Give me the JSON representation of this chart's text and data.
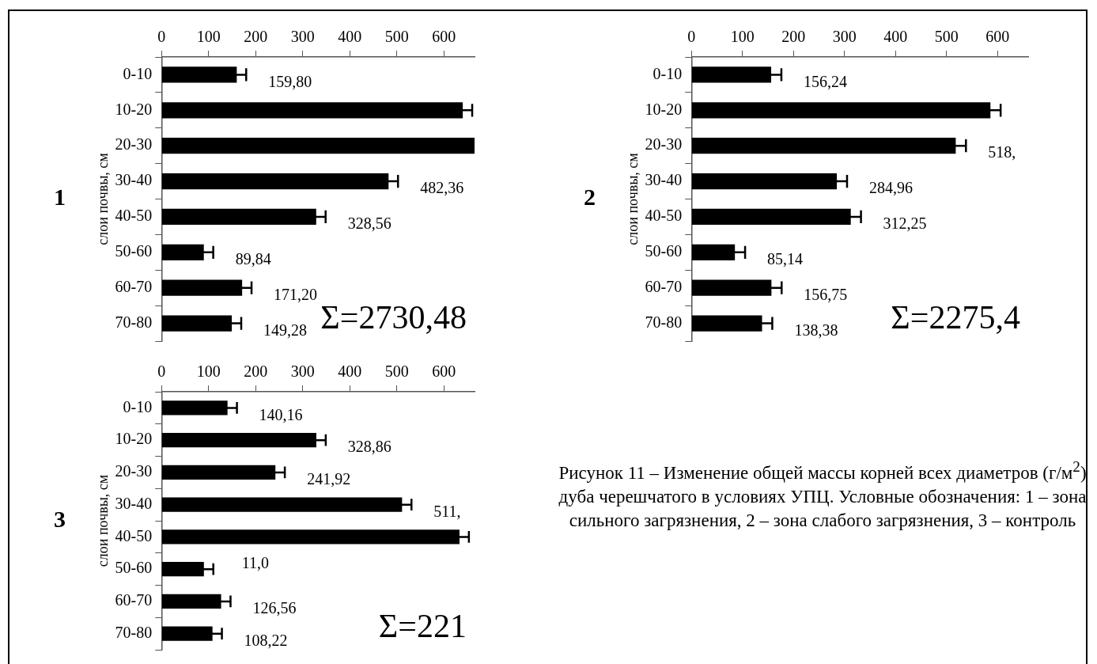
{
  "chart_data": [
    {
      "type": "bar",
      "orientation": "horizontal",
      "title": "1",
      "ylabel": "слои почвы, см",
      "categories": [
        "0-10",
        "10-20",
        "20-30",
        "30-40",
        "40-50",
        "50-60",
        "60-70",
        "70-80"
      ],
      "series": [
        {
          "color": "#000000",
          "values": [
            159.8,
            640,
            665,
            482.36,
            328.56,
            89.84,
            171.2,
            149.28
          ],
          "errors": [
            20,
            20,
            null,
            20,
            20,
            20,
            20,
            20
          ],
          "value_labels": [
            "159,80",
            null,
            null,
            "482,36",
            "328,56",
            "89,84",
            "171,20",
            "149,28"
          ]
        }
      ],
      "xlim": [
        0,
        665
      ],
      "xticks": [
        0,
        100,
        200,
        300,
        400,
        500,
        600
      ],
      "grid": false,
      "annotations": [
        "Σ=2730,48"
      ]
    },
    {
      "type": "bar",
      "orientation": "horizontal",
      "title": "2",
      "ylabel": "слои почвы, см",
      "categories": [
        "0-10",
        "10-20",
        "20-30",
        "30-40",
        "40-50",
        "50-60",
        "60-70",
        "70-80"
      ],
      "series": [
        {
          "color": "#000000",
          "values": [
            156.24,
            586,
            518,
            284.96,
            312.25,
            85.14,
            156.75,
            138.38
          ],
          "errors": [
            20,
            20,
            20,
            20,
            20,
            20,
            20,
            20
          ],
          "value_labels": [
            "156,24",
            null,
            "518,",
            "284,96",
            "312,25",
            "85,14",
            "156,75",
            "138,38"
          ]
        }
      ],
      "xlim": [
        0,
        660
      ],
      "xticks": [
        0,
        100,
        200,
        300,
        400,
        500,
        600
      ],
      "grid": false,
      "annotations": [
        "Σ=2275,4"
      ]
    },
    {
      "type": "bar",
      "orientation": "horizontal",
      "title": "3",
      "ylabel": "слои почвы, см",
      "categories": [
        "0-10",
        "10-20",
        "20-30",
        "30-40",
        "40-50",
        "50-60",
        "60-70",
        "70-80"
      ],
      "series": [
        {
          "color": "#000000",
          "values": [
            140.16,
            328.86,
            241.92,
            511,
            633,
            90,
            126.56,
            108.22
          ],
          "errors": [
            20,
            20,
            20,
            20,
            20,
            20,
            20,
            20
          ],
          "value_labels": [
            "140,16",
            "328,86",
            "241,92",
            "511,",
            null,
            null,
            "126,56",
            "108,22"
          ]
        }
      ],
      "xlim": [
        0,
        665
      ],
      "xticks": [
        0,
        100,
        200,
        300,
        400,
        500,
        600
      ],
      "grid": false,
      "annotations": [
        "Σ=221",
        {
          "text": "11,0",
          "x": 90,
          "y": "50-60"
        }
      ]
    },
    {
      "type": "other",
      "annotations": [
        "Рисунок 11 – Изменение общей массы корней всех диаметров (г/м$^{2}$) дуба черешчатого в условиях УПЦ. Условные обозначения: 1 – зона сильного загрязнения, 2 – зона слабого загрязнения, 3 – контроль"
      ]
    }
  ]
}
